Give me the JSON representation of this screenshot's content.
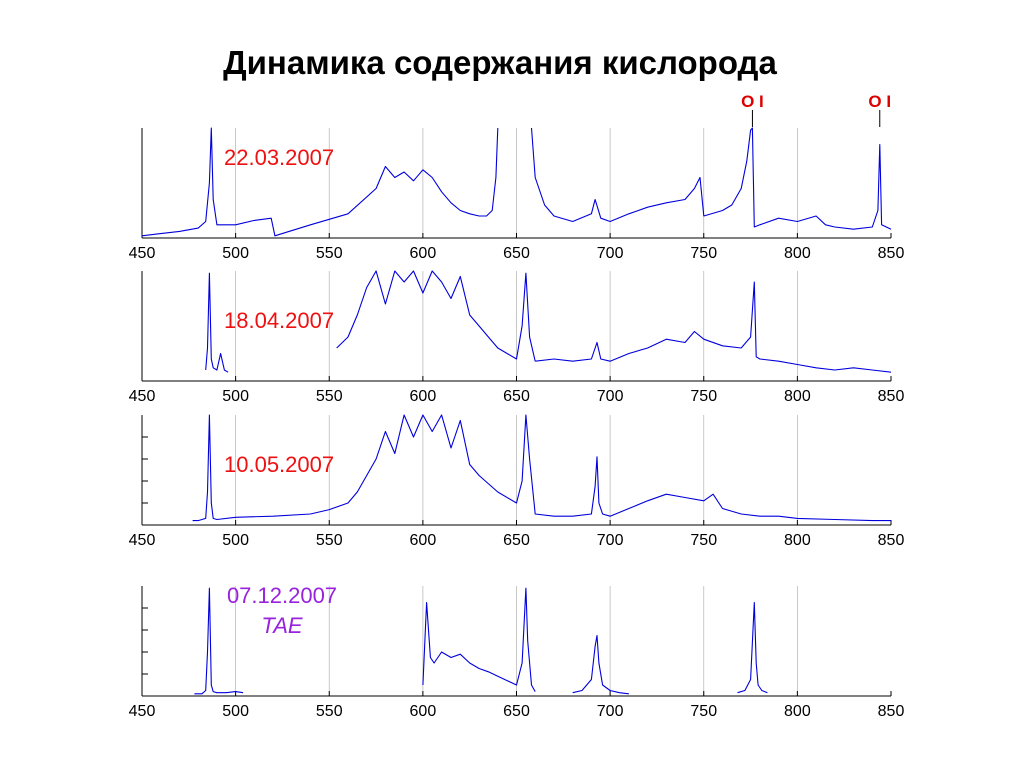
{
  "title": "Динамика содержания кислорода",
  "colors": {
    "spectrum": "#0000dd",
    "date_red": "#ee1111",
    "date_purple": "#9922dd",
    "marker": "#dd0000",
    "axis": "#000000",
    "grid": "#bbbbbb"
  },
  "chart_data": [
    {
      "type": "line",
      "panel": 1,
      "date_label": "22.03.2007",
      "label_color": "red",
      "xlim": [
        450,
        850
      ],
      "xticks": [
        450,
        500,
        550,
        600,
        650,
        700,
        750,
        800,
        850
      ],
      "grid_x": true,
      "markers": [
        {
          "x": 776,
          "label": "O I"
        },
        {
          "x": 844,
          "label": "O I"
        }
      ],
      "series": [
        {
          "segments": [
            {
              "x": [
                450,
                460,
                470,
                480,
                484,
                486,
                487,
                488,
                490,
                495,
                500,
                510,
                519,
                521,
                540,
                560,
                575,
                580,
                585,
                590,
                595,
                600,
                605,
                610,
                615,
                620,
                625,
                630,
                634,
                637,
                639,
                640
              ],
              "y": [
                0.02,
                0.04,
                0.06,
                0.09,
                0.15,
                0.5,
                1.0,
                0.35,
                0.12,
                0.12,
                0.12,
                0.16,
                0.18,
                0.02,
                0.12,
                0.22,
                0.45,
                0.65,
                0.55,
                0.6,
                0.52,
                0.62,
                0.55,
                0.42,
                0.32,
                0.25,
                0.22,
                0.2,
                0.2,
                0.25,
                0.55,
                1.0
              ]
            },
            {
              "x": [
                658,
                660,
                665,
                670,
                680,
                690,
                692,
                695,
                700,
                710,
                720,
                730,
                740,
                745,
                748,
                750,
                760,
                765,
                770,
                773,
                775,
                776,
                777,
                780,
                790,
                800,
                810,
                815,
                820,
                830,
                840,
                843,
                844,
                845,
                850
              ],
              "y": [
                1.0,
                0.55,
                0.3,
                0.2,
                0.15,
                0.22,
                0.35,
                0.18,
                0.15,
                0.22,
                0.28,
                0.32,
                0.35,
                0.45,
                0.55,
                0.2,
                0.25,
                0.3,
                0.45,
                0.7,
                0.98,
                1.0,
                0.1,
                0.12,
                0.18,
                0.15,
                0.2,
                0.12,
                0.1,
                0.08,
                0.1,
                0.25,
                0.85,
                0.12,
                0.08
              ]
            }
          ]
        }
      ]
    },
    {
      "type": "line",
      "panel": 2,
      "date_label": "18.04.2007",
      "label_color": "red",
      "xlim": [
        450,
        850
      ],
      "xticks": [
        450,
        500,
        550,
        600,
        650,
        700,
        750,
        800,
        850
      ],
      "grid_x": true,
      "markers": [],
      "series": [
        {
          "segments": [
            {
              "x": [
                484,
                485,
                486,
                487,
                488,
                490,
                492,
                494,
                496
              ],
              "y": [
                0.1,
                0.3,
                0.98,
                0.2,
                0.12,
                0.1,
                0.25,
                0.1,
                0.08
              ]
            },
            {
              "x": [
                554,
                560,
                565,
                570,
                575,
                580,
                585,
                590,
                595,
                600,
                605,
                610,
                615,
                620,
                625,
                630,
                635,
                640,
                645,
                650,
                653,
                655,
                657,
                660
              ],
              "y": [
                0.3,
                0.4,
                0.6,
                0.85,
                1.0,
                0.7,
                1.0,
                0.9,
                1.0,
                0.8,
                1.0,
                0.9,
                0.75,
                0.95,
                0.6,
                0.5,
                0.4,
                0.3,
                0.25,
                0.2,
                0.5,
                0.98,
                0.4,
                0.18
              ]
            },
            {
              "x": [
                660,
                670,
                680,
                690,
                693,
                695,
                700,
                710,
                720,
                730,
                740,
                745,
                750,
                760,
                770,
                775,
                777,
                778,
                780,
                790,
                800,
                810,
                820,
                830,
                840,
                850
              ],
              "y": [
                0.18,
                0.2,
                0.18,
                0.2,
                0.35,
                0.2,
                0.18,
                0.25,
                0.3,
                0.38,
                0.35,
                0.45,
                0.38,
                0.32,
                0.3,
                0.4,
                0.9,
                0.22,
                0.2,
                0.18,
                0.15,
                0.12,
                0.1,
                0.12,
                0.1,
                0.08
              ]
            }
          ]
        }
      ]
    },
    {
      "type": "line",
      "panel": 3,
      "date_label": "10.05.2007",
      "label_color": "red",
      "xlim": [
        450,
        850
      ],
      "xticks": [
        450,
        500,
        550,
        600,
        650,
        700,
        750,
        800,
        850
      ],
      "grid_x": true,
      "markers": [],
      "series": [
        {
          "segments": [
            {
              "x": [
                477,
                480,
                484,
                485,
                486,
                487,
                488,
                490,
                500,
                520,
                540,
                550,
                560,
                565,
                570,
                575,
                580,
                585,
                590,
                595,
                600,
                605,
                610,
                615,
                620,
                625,
                630,
                640,
                650,
                653,
                655,
                657,
                660,
                670,
                680,
                690,
                692,
                693,
                694,
                696,
                700,
                710,
                720,
                730,
                740,
                750,
                755,
                760,
                770,
                780,
                790,
                800,
                820,
                840,
                850
              ],
              "y": [
                0.04,
                0.04,
                0.06,
                0.3,
                1.0,
                0.2,
                0.06,
                0.05,
                0.07,
                0.08,
                0.1,
                0.14,
                0.2,
                0.3,
                0.45,
                0.6,
                0.85,
                0.65,
                1.0,
                0.8,
                1.0,
                0.85,
                1.0,
                0.7,
                0.95,
                0.55,
                0.45,
                0.3,
                0.2,
                0.4,
                1.0,
                0.6,
                0.1,
                0.08,
                0.08,
                0.1,
                0.35,
                0.62,
                0.2,
                0.1,
                0.08,
                0.15,
                0.22,
                0.28,
                0.25,
                0.22,
                0.28,
                0.15,
                0.1,
                0.08,
                0.08,
                0.06,
                0.05,
                0.04,
                0.04
              ]
            }
          ]
        }
      ]
    },
    {
      "type": "line",
      "panel": 4,
      "date_label": "07.12.2007",
      "sublabel": "TAE",
      "label_color": "purple",
      "xlim": [
        450,
        850
      ],
      "xticks": [
        450,
        500,
        550,
        600,
        650,
        700,
        750,
        800,
        850
      ],
      "grid_x": true,
      "markers": [],
      "series": [
        {
          "segments": [
            {
              "x": [
                478,
                482,
                484,
                485,
                486,
                487,
                488,
                490,
                495,
                500,
                504
              ],
              "y": [
                0.02,
                0.02,
                0.05,
                0.4,
                0.98,
                0.1,
                0.04,
                0.03,
                0.03,
                0.04,
                0.03
              ]
            },
            {
              "x": [
                600,
                602,
                604,
                606,
                610,
                615,
                620,
                625,
                630,
                635,
                640,
                645,
                650,
                653,
                655,
                656,
                658,
                660
              ],
              "y": [
                0.1,
                0.85,
                0.35,
                0.3,
                0.4,
                0.35,
                0.38,
                0.3,
                0.25,
                0.22,
                0.18,
                0.14,
                0.1,
                0.3,
                0.98,
                0.5,
                0.1,
                0.04
              ]
            },
            {
              "x": [
                680,
                685,
                690,
                692,
                693,
                694,
                696,
                700,
                705,
                710
              ],
              "y": [
                0.03,
                0.05,
                0.15,
                0.45,
                0.55,
                0.3,
                0.1,
                0.05,
                0.03,
                0.02
              ]
            },
            {
              "x": [
                768,
                772,
                775,
                777,
                778,
                779,
                781,
                784
              ],
              "y": [
                0.03,
                0.05,
                0.15,
                0.85,
                0.3,
                0.1,
                0.05,
                0.03
              ]
            }
          ]
        }
      ]
    }
  ]
}
